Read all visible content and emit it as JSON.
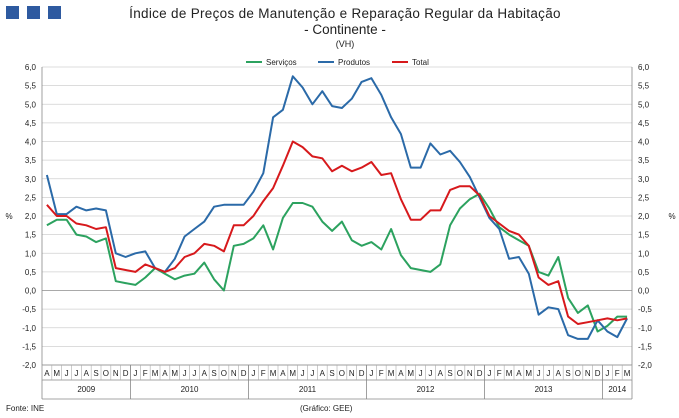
{
  "header": {
    "title": "Índice de Preços de Manutenção e Reparação Regular da Habitação",
    "subtitle": "- Continente -",
    "unit": "(VH)"
  },
  "footer": {
    "source": "Fonte: INE",
    "credit": "(Gráfico: GEE)"
  },
  "chart_data": {
    "type": "line",
    "title": "Índice de Preços de Manutenção e Reparação Regular da Habitação",
    "subtitle": "- Continente -",
    "unit": "(VH)",
    "ylabel": "%",
    "ylabel_right": "%",
    "ylim": [
      -2.0,
      6.0
    ],
    "ytick_step": 0.5,
    "yticks": [
      "-2,0",
      "-1,5",
      "-1,0",
      "-0,5",
      "0,0",
      "0,5",
      "1,0",
      "1,5",
      "2,0",
      "2,5",
      "3,0",
      "3,5",
      "4,0",
      "4,5",
      "5,0",
      "5,5",
      "6,0"
    ],
    "grid": true,
    "legend_position": "top",
    "colors": {
      "Serviços": "#2ca25f",
      "Produtos": "#2b6aa8",
      "Total": "#d7191c"
    },
    "x": [
      "A",
      "M",
      "J",
      "J",
      "A",
      "S",
      "O",
      "N",
      "D",
      "J",
      "F",
      "M",
      "A",
      "M",
      "J",
      "J",
      "A",
      "S",
      "O",
      "N",
      "D",
      "J",
      "F",
      "M",
      "A",
      "M",
      "J",
      "J",
      "A",
      "S",
      "O",
      "N",
      "D",
      "J",
      "F",
      "M",
      "A",
      "M",
      "J",
      "J",
      "A",
      "S",
      "O",
      "N",
      "D",
      "J",
      "F",
      "M",
      "A",
      "M",
      "J",
      "J",
      "A",
      "S",
      "O",
      "N",
      "D",
      "J",
      "F",
      "M"
    ],
    "years": [
      {
        "label": "2009",
        "start": 0,
        "end": 8
      },
      {
        "label": "2010",
        "start": 9,
        "end": 20
      },
      {
        "label": "2011",
        "start": 21,
        "end": 32
      },
      {
        "label": "2012",
        "start": 33,
        "end": 44
      },
      {
        "label": "2013",
        "start": 45,
        "end": 56
      },
      {
        "label": "2014",
        "start": 57,
        "end": 59
      }
    ],
    "series": [
      {
        "name": "Serviços",
        "values": [
          1.75,
          1.9,
          1.9,
          1.5,
          1.45,
          1.3,
          1.4,
          0.25,
          0.2,
          0.15,
          0.35,
          0.6,
          0.45,
          0.3,
          0.4,
          0.45,
          0.75,
          0.3,
          0.0,
          1.2,
          1.25,
          1.4,
          1.75,
          1.1,
          1.95,
          2.35,
          2.35,
          2.25,
          1.85,
          1.6,
          1.85,
          1.35,
          1.2,
          1.3,
          1.1,
          1.65,
          0.95,
          0.6,
          0.55,
          0.5,
          0.7,
          1.75,
          2.2,
          2.45,
          2.6,
          2.2,
          1.7,
          1.5,
          1.35,
          1.2,
          0.5,
          0.4,
          0.9,
          -0.2,
          -0.6,
          -0.4,
          -1.1,
          -0.95,
          -0.7,
          -0.7
        ]
      },
      {
        "name": "Produtos",
        "values": [
          3.1,
          2.05,
          2.05,
          2.25,
          2.15,
          2.2,
          2.15,
          1.0,
          0.9,
          1.0,
          1.05,
          0.6,
          0.5,
          0.85,
          1.45,
          1.65,
          1.85,
          2.25,
          2.3,
          2.3,
          2.3,
          2.65,
          3.15,
          4.65,
          4.85,
          5.75,
          5.45,
          5.0,
          5.35,
          4.95,
          4.9,
          5.15,
          5.6,
          5.7,
          5.25,
          4.65,
          4.2,
          3.3,
          3.3,
          3.95,
          3.65,
          3.75,
          3.45,
          3.05,
          2.5,
          1.95,
          1.65,
          0.85,
          0.9,
          0.45,
          -0.65,
          -0.45,
          -0.5,
          -1.2,
          -1.3,
          -1.3,
          -0.8,
          -1.1,
          -1.25,
          -0.75
        ]
      },
      {
        "name": "Total",
        "values": [
          2.3,
          2.0,
          2.0,
          1.8,
          1.75,
          1.65,
          1.7,
          0.6,
          0.55,
          0.5,
          0.7,
          0.6,
          0.5,
          0.6,
          0.9,
          1.0,
          1.25,
          1.2,
          1.05,
          1.75,
          1.75,
          2.0,
          2.4,
          2.75,
          3.35,
          4.0,
          3.85,
          3.6,
          3.55,
          3.2,
          3.35,
          3.2,
          3.3,
          3.45,
          3.1,
          3.15,
          2.45,
          1.9,
          1.9,
          2.15,
          2.15,
          2.7,
          2.8,
          2.8,
          2.55,
          2.0,
          1.8,
          1.6,
          1.5,
          1.2,
          0.35,
          0.15,
          0.25,
          -0.7,
          -0.9,
          -0.85,
          -0.8,
          -0.75,
          -0.8,
          -0.75
        ]
      }
    ]
  }
}
